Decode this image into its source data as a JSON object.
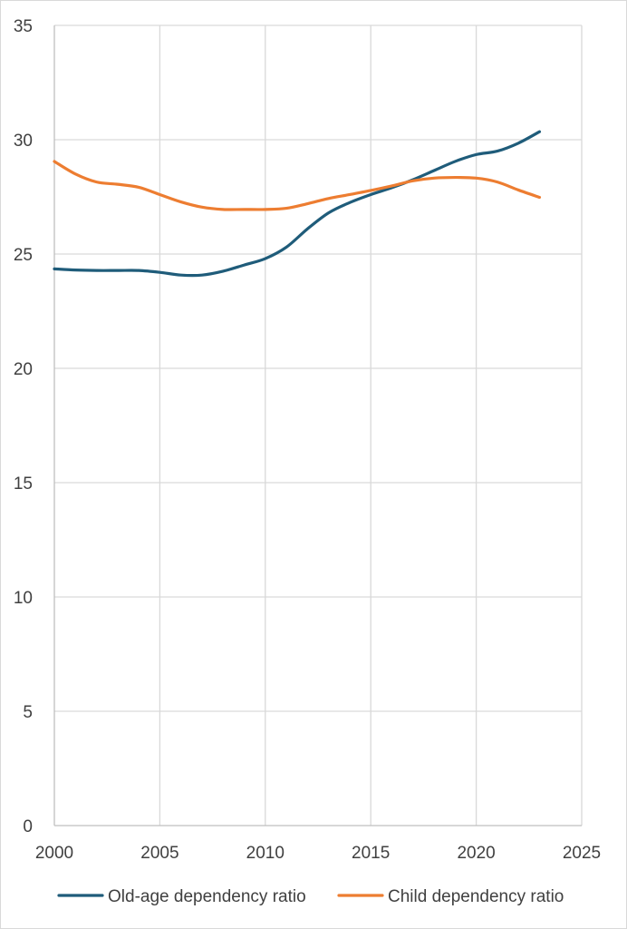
{
  "chart_data": {
    "type": "line",
    "title": "",
    "xlabel": "",
    "ylabel": "",
    "xlim": [
      2000,
      2025
    ],
    "ylim": [
      0,
      35
    ],
    "x_ticks": [
      2000,
      2005,
      2010,
      2015,
      2020,
      2025
    ],
    "y_ticks": [
      0,
      5,
      10,
      15,
      20,
      25,
      30,
      35
    ],
    "grid": true,
    "smooth": true,
    "legend_position": "bottom",
    "series": [
      {
        "name": "Old-age dependency ratio",
        "color": "#1f5c7a",
        "x": [
          2000,
          2001,
          2002,
          2003,
          2004,
          2005,
          2006,
          2007,
          2008,
          2009,
          2010,
          2011,
          2012,
          2013,
          2014,
          2015,
          2016,
          2017,
          2018,
          2019,
          2020,
          2021,
          2022,
          2023
        ],
        "values": [
          24.35,
          24.3,
          24.28,
          24.28,
          24.28,
          24.2,
          24.08,
          24.08,
          24.25,
          24.52,
          24.8,
          25.3,
          26.1,
          26.8,
          27.25,
          27.6,
          27.9,
          28.25,
          28.65,
          29.05,
          29.35,
          29.5,
          29.85,
          30.35
        ]
      },
      {
        "name": "Child dependency ratio",
        "color": "#ed7d31",
        "x": [
          2000,
          2001,
          2002,
          2003,
          2004,
          2005,
          2006,
          2007,
          2008,
          2009,
          2010,
          2011,
          2012,
          2013,
          2014,
          2015,
          2016,
          2017,
          2018,
          2019,
          2020,
          2021,
          2022,
          2023
        ],
        "values": [
          29.05,
          28.5,
          28.15,
          28.05,
          27.92,
          27.6,
          27.28,
          27.05,
          26.95,
          26.95,
          26.95,
          27.0,
          27.2,
          27.43,
          27.6,
          27.78,
          27.98,
          28.2,
          28.32,
          28.35,
          28.32,
          28.15,
          27.8,
          27.48
        ]
      }
    ]
  }
}
